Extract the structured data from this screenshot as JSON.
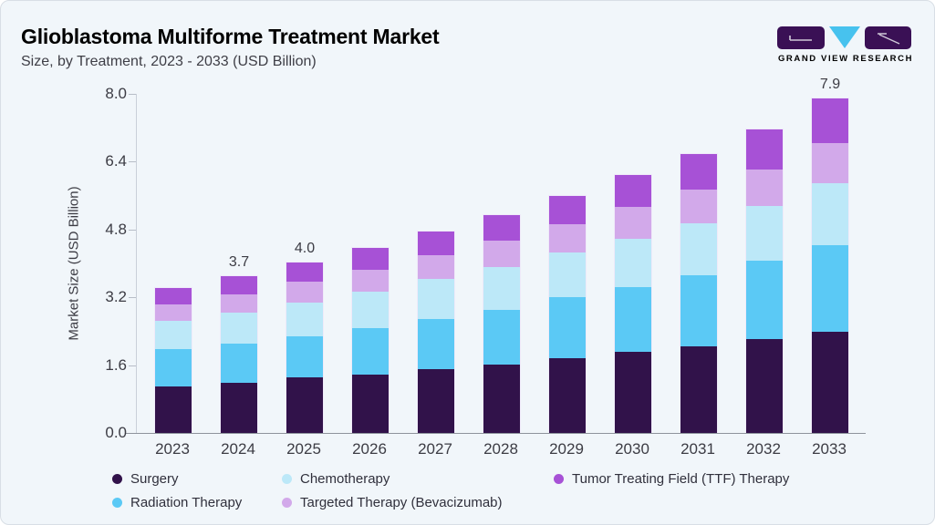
{
  "header": {
    "title": "Glioblastoma Multiforme Treatment Market",
    "subtitle": "Size, by Treatment, 2023 - 2033 (USD Billion)",
    "brand": "GRAND VIEW RESEARCH"
  },
  "colors": {
    "accent_bar": "#76c8e9",
    "card_background": "#f1f6fa",
    "card_border": "#d8dee5",
    "title_purple": "#3a1055",
    "logo_block_purple": "#3a1055",
    "logo_triangle_blue": "#47c2ee",
    "axis_line": "#c9cfd9",
    "baseline": "#8e939c",
    "tick_text": "#3c3c44"
  },
  "chart_data": {
    "type": "bar",
    "stacked": true,
    "title": "Glioblastoma Multiforme Treatment Market Size, by Treatment, 2023 - 2033 (USD Billion)",
    "xlabel": "",
    "ylabel": "Market Size (USD Billion)",
    "ylim": [
      0,
      8.0
    ],
    "yticks": [
      "0.0",
      "1.6",
      "3.2",
      "4.8",
      "6.4",
      "8.0"
    ],
    "grid": false,
    "legend_position": "bottom",
    "categories": [
      "2023",
      "2024",
      "2025",
      "2026",
      "2027",
      "2028",
      "2029",
      "2030",
      "2031",
      "2032",
      "2033"
    ],
    "series": [
      {
        "name": "Surgery",
        "color": "#31124a",
        "values": [
          1.1,
          1.18,
          1.31,
          1.38,
          1.5,
          1.61,
          1.76,
          1.92,
          2.05,
          2.21,
          2.39
        ]
      },
      {
        "name": "Radiation Therapy",
        "color": "#5bc9f5",
        "values": [
          0.87,
          0.92,
          0.98,
          1.09,
          1.18,
          1.3,
          1.44,
          1.53,
          1.68,
          1.86,
          2.05
        ]
      },
      {
        "name": "Chemotherapy",
        "color": "#bce8f8",
        "values": [
          0.67,
          0.74,
          0.79,
          0.86,
          0.95,
          1.0,
          1.05,
          1.14,
          1.22,
          1.29,
          1.45
        ]
      },
      {
        "name": "Targeted Therapy (Bevacizumab)",
        "color": "#d2a9ea",
        "values": [
          0.39,
          0.43,
          0.48,
          0.53,
          0.57,
          0.62,
          0.67,
          0.74,
          0.8,
          0.86,
          0.94
        ]
      },
      {
        "name": "Tumor Treating Field (TTF) Therapy",
        "color": "#a751d6",
        "values": [
          0.38,
          0.42,
          0.46,
          0.5,
          0.56,
          0.62,
          0.68,
          0.76,
          0.84,
          0.95,
          1.06
        ]
      }
    ],
    "total_labels": {
      "2024": "3.7",
      "2025": "4.0",
      "2033": "7.9"
    },
    "legend_order": [
      0,
      2,
      4,
      1,
      3
    ]
  }
}
